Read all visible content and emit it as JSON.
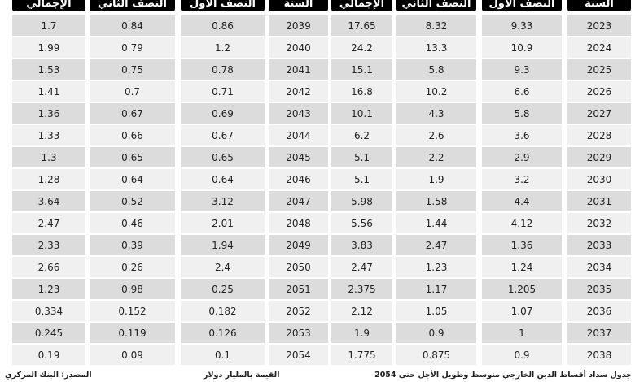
{
  "table": {
    "header": [
      "السنة",
      "النصف الأول",
      "النصف الثاني",
      "الإجمالي",
      "السنة",
      "النصف الأول",
      "النصف الثاني",
      "الإجمالي"
    ],
    "rows": [
      [
        "2023",
        "9.33",
        "8.32",
        "17.65",
        "2039",
        "0.86",
        "0.84",
        "1.7"
      ],
      [
        "2024",
        "10.9",
        "13.3",
        "24.2",
        "2040",
        "1.2",
        "0.79",
        "1.99"
      ],
      [
        "2025",
        "9.3",
        "5.8",
        "15.1",
        "2041",
        "0.78",
        "0.75",
        "1.53"
      ],
      [
        "2026",
        "6.6",
        "10.2",
        "16.8",
        "2042",
        "0.71",
        "0.7",
        "1.41"
      ],
      [
        "2027",
        "5.8",
        "4.3",
        "10.1",
        "2043",
        "0.69",
        "0.67",
        "1.36"
      ],
      [
        "2028",
        "3.6",
        "2.6",
        "6.2",
        "2044",
        "0.67",
        "0.66",
        "1.33"
      ],
      [
        "2029",
        "2.9",
        "2.2",
        "5.1",
        "2045",
        "0.65",
        "0.65",
        "1.3"
      ],
      [
        "2030",
        "3.2",
        "1.9",
        "5.1",
        "2046",
        "0.64",
        "0.64",
        "1.28"
      ],
      [
        "2031",
        "4.4",
        "1.58",
        "5.98",
        "2047",
        "3.12",
        "0.52",
        "3.64"
      ],
      [
        "2032",
        "4.12",
        "1.44",
        "5.56",
        "2048",
        "2.01",
        "0.46",
        "2.47"
      ],
      [
        "2033",
        "1.36",
        "2.47",
        "3.83",
        "2049",
        "1.94",
        "0.39",
        "2.33"
      ],
      [
        "2034",
        "1.24",
        "1.23",
        "2.47",
        "2050",
        "2.4",
        "0.26",
        "2.66"
      ],
      [
        "2035",
        "1.205",
        "1.17",
        "2.375",
        "2051",
        "0.25",
        "0.98",
        "1.23"
      ],
      [
        "2036",
        "1.07",
        "1.05",
        "2.12",
        "2052",
        "0.182",
        "0.152",
        "0.334"
      ],
      [
        "2037",
        "1",
        "0.9",
        "1.9",
        "2053",
        "0.126",
        "0.119",
        "0.245"
      ],
      [
        "2038",
        "0.9",
        "0.875",
        "1.775",
        "2054",
        "0.1",
        "0.09",
        "0.19"
      ]
    ]
  },
  "footer": {
    "title": "جدول سداد أقساط الدين الخارجي متوسط وطويل الأجل حتى 2054",
    "unit": "القيمة بالمليار دولار",
    "source": "المصدر: البنك المركزي"
  }
}
